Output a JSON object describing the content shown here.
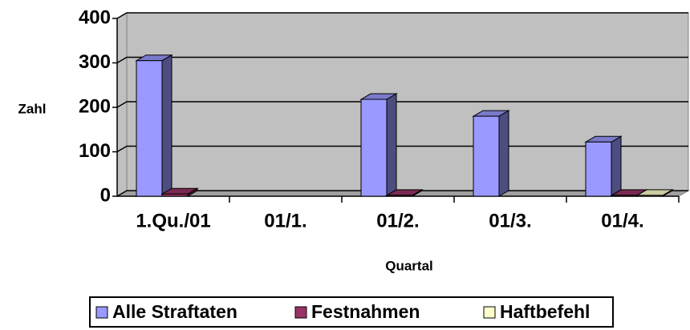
{
  "chart_data": {
    "type": "bar3d",
    "categories": [
      "1.Qu./01",
      "01/1.",
      "01/2.",
      "01/3.",
      "01/4."
    ],
    "series": [
      {
        "name": "Alle Straftaten",
        "color": "#9999ff",
        "values": [
          305,
          null,
          218,
          180,
          122
        ]
      },
      {
        "name": "Festnahmen",
        "color": "#993366",
        "values": [
          5,
          null,
          2,
          null,
          2
        ]
      },
      {
        "name": "Haftbefehl",
        "color": "#ffffcc",
        "values": [
          null,
          null,
          null,
          null,
          2
        ]
      }
    ],
    "ylim": [
      0,
      400
    ],
    "yticks": [
      0,
      100,
      200,
      300,
      400
    ],
    "y_label": "Zahl",
    "x_label": "Quartal",
    "grid": true,
    "legend": "bottom"
  }
}
